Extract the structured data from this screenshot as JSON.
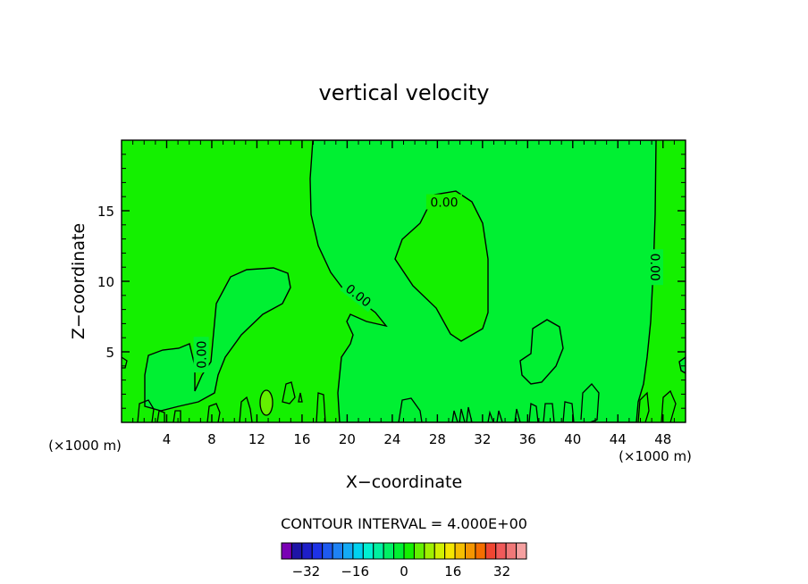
{
  "chart_data": {
    "type": "heatmap",
    "title": "vertical velocity",
    "xlabel": "X−coordinate",
    "ylabel": "Z−coordinate",
    "x_unit_label": "(×1000 m)",
    "z_unit_label": "(×1000 m)",
    "xlim": [
      0,
      50
    ],
    "ylim": [
      0,
      20
    ],
    "x_ticks": [
      4,
      8,
      12,
      16,
      20,
      24,
      28,
      32,
      36,
      40,
      44,
      48
    ],
    "y_ticks": [
      5,
      10,
      15
    ],
    "contour_labels": [
      {
        "text": "0.00",
        "x": 28.6,
        "z": 15.6,
        "angle": 0
      },
      {
        "text": "0.00",
        "x": 21.0,
        "z": 9.0,
        "angle": 38
      },
      {
        "text": "0.00",
        "x": 7.1,
        "z": 4.8,
        "angle": -90
      },
      {
        "text": "0.00",
        "x": 47.3,
        "z": 11.0,
        "angle": 90
      }
    ],
    "contour_interval_text": "CONTOUR INTERVAL = 4.000E+00",
    "contour_interval": 4.0,
    "colorbar": {
      "tick_labels": [
        "−32",
        "−16",
        "0",
        "16",
        "32"
      ],
      "tick_values": [
        -32,
        -16,
        0,
        16,
        32
      ],
      "range": [
        -40,
        40
      ],
      "colors": [
        "#7a00b4",
        "#1e14a6",
        "#1e1ec8",
        "#1e32e6",
        "#1e5af0",
        "#1e82f5",
        "#14aaf5",
        "#00d2f0",
        "#00f0d2",
        "#00f0a0",
        "#00f064",
        "#00f032",
        "#14f000",
        "#64f000",
        "#a0f000",
        "#d2f000",
        "#f5e600",
        "#f5be00",
        "#f59600",
        "#f56e00",
        "#f04632",
        "#f05a5a",
        "#f07878",
        "#f5a0a0"
      ]
    },
    "field_colors": {
      "negative_small": "#00f032",
      "positive_small": "#14f000",
      "positive_medium": "#64f000"
    },
    "grid": false
  }
}
